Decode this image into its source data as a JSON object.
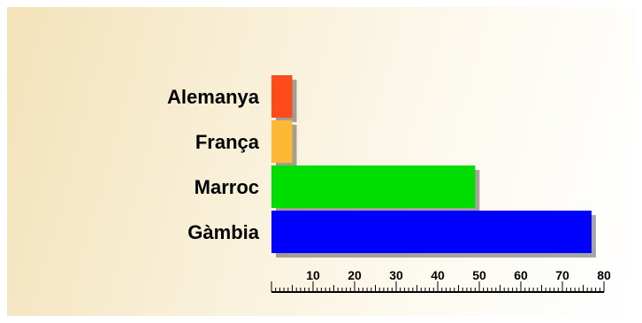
{
  "chart_data": {
    "type": "bar",
    "orientation": "horizontal",
    "categories": [
      "Alemanya",
      "França",
      "Marroc",
      "Gàmbia"
    ],
    "values": [
      5,
      5,
      49,
      77
    ],
    "colors": [
      "#ff4a1c",
      "#ffb833",
      "#00dd00",
      "#0000ff"
    ],
    "xlim": [
      0,
      80
    ],
    "xticks": [
      "10",
      "20",
      "30",
      "40",
      "50",
      "60",
      "70",
      "80"
    ],
    "grid": false,
    "legend": "none"
  }
}
